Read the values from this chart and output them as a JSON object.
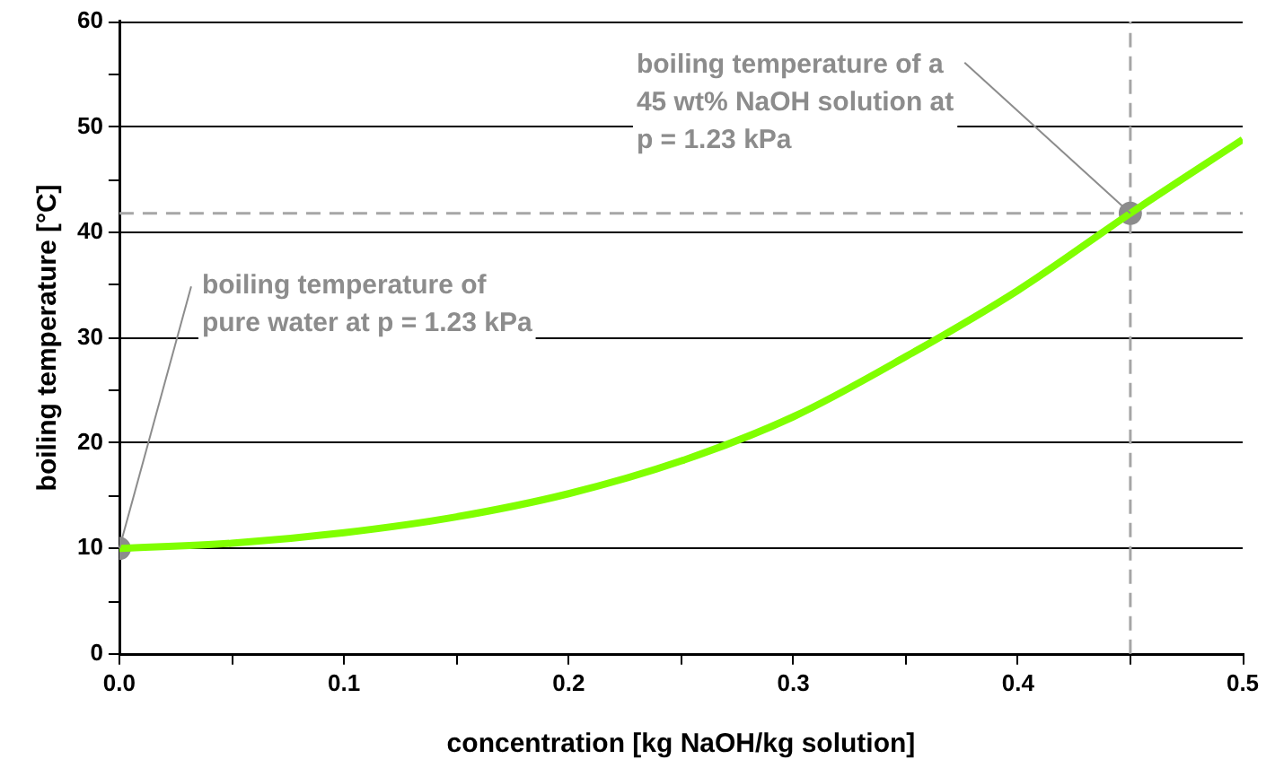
{
  "chart_data": {
    "type": "line",
    "xlabel": "concentration [kg NaOH/kg solution]",
    "ylabel": "boiling temperature [°C]",
    "xlim": [
      0,
      0.5
    ],
    "xticks": [
      "0.0",
      {
        "value": 0.05,
        "label": null
      },
      0.1,
      {
        "value": 0.15,
        "label": null
      },
      0.2,
      {
        "value": 0.25,
        "label": null
      },
      0.3,
      {
        "value": 0.35,
        "label": null
      },
      0.4,
      {
        "value": 0.45,
        "label": null
      },
      0.5
    ],
    "ylim": [
      0,
      60
    ],
    "yticks": [
      0,
      {
        "value": 5,
        "label": null
      },
      10,
      {
        "value": 15,
        "label": null
      },
      20,
      {
        "value": 25,
        "label": null
      },
      30,
      {
        "value": 35,
        "label": null
      },
      40,
      {
        "value": 45,
        "label": null
      },
      50,
      {
        "value": 55,
        "label": null
      },
      60
    ],
    "grid": "y",
    "legend": false,
    "series": [
      {
        "type": "line",
        "color": "#80ff00",
        "marker": "none",
        "x": [
          0,
          0.05,
          0.1,
          0.15,
          0.2,
          0.25,
          0.3,
          0.35,
          0.4,
          0.45,
          0.5
        ],
        "values": [
          10,
          10.5,
          11.5,
          13,
          15.2,
          18.3,
          22.5,
          28.2,
          34.5,
          41.8,
          48.8
        ]
      },
      {
        "type": "scatter",
        "color": "#8c8c8c",
        "marker": "circle",
        "x": [
          0,
          0.45
        ],
        "values": [
          10,
          41.8
        ]
      }
    ],
    "ref_lines": [
      {
        "axis": "x",
        "value": 0.45,
        "color": "#a6a6a6",
        "line_style": "dashed"
      },
      {
        "axis": "y",
        "value": 41.8,
        "color": "#a6a6a6",
        "line_style": "dashed"
      }
    ],
    "annotations": [
      {
        "text": "boiling temperature of\npure water at p = 1.23 kPa",
        "x": 0,
        "y": 10
      },
      {
        "text": "boiling temperature of a\n45 wt% NaOH solution at\np = 1.23 kPa",
        "x": 0.45,
        "y": 41.8
      }
    ]
  }
}
